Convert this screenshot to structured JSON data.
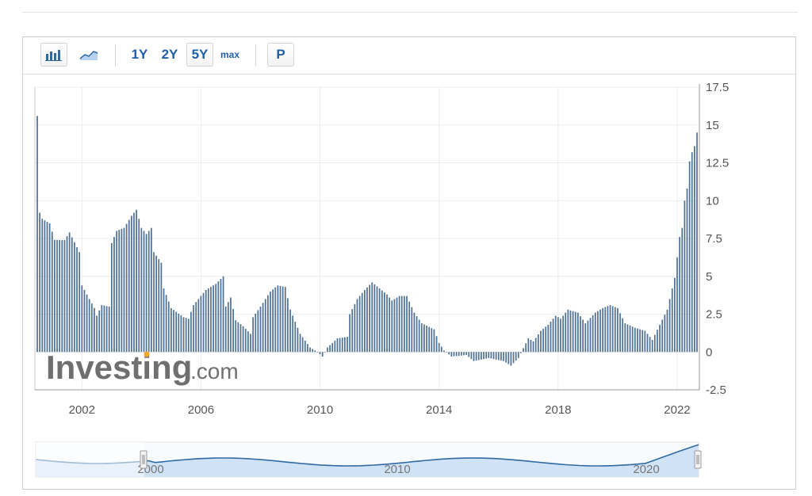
{
  "toolbar": {
    "bar_chart_icon": "bar-chart-icon",
    "area_chart_icon": "area-chart-icon",
    "periods": [
      "1Y",
      "2Y",
      "5Y",
      "max"
    ],
    "selected_period": "5Y",
    "print_label": "P"
  },
  "watermark": {
    "main": "Investing",
    "suffix": ".com"
  },
  "colors": {
    "bar": "#4f7193",
    "accent": "#1f5fa8",
    "logo_dot": "#f5a623",
    "navigator_fill": "#cfe2f6",
    "navigator_line": "#2f6aa3"
  },
  "navigator": {
    "tick_labels": [
      "2000",
      "2010",
      "2020"
    ]
  },
  "chart_data": {
    "type": "bar",
    "x_start": "2000-07",
    "x_end": "2022-09",
    "frequency": "monthly",
    "xlim": [
      "2000-07",
      "2022-09"
    ],
    "ylim": [
      -2.5,
      17.5
    ],
    "y_ticks": [
      "17.5",
      "15",
      "12.5",
      "10",
      "7.5",
      "5",
      "2.5",
      "0",
      "-2.5"
    ],
    "x_ticks": [
      "2002",
      "2006",
      "2010",
      "2014",
      "2018",
      "2022"
    ],
    "y_axis_position": "right",
    "grid": true,
    "anchors": [
      [
        "2000-07",
        15.6
      ],
      [
        "2000-08",
        9.2
      ],
      [
        "2000-09",
        8.8
      ],
      [
        "2000-12",
        8.5
      ],
      [
        "2001-02",
        7.4
      ],
      [
        "2001-06",
        7.4
      ],
      [
        "2001-08",
        7.9
      ],
      [
        "2001-12",
        6.6
      ],
      [
        "2002-01",
        4.4
      ],
      [
        "2002-06",
        2.9
      ],
      [
        "2002-07",
        2.4
      ],
      [
        "2002-09",
        3.1
      ],
      [
        "2002-12",
        3.0
      ],
      [
        "2003-01",
        7.2
      ],
      [
        "2003-03",
        8.0
      ],
      [
        "2003-06",
        8.2
      ],
      [
        "2003-09",
        9.0
      ],
      [
        "2003-11",
        9.4
      ],
      [
        "2004-01",
        8.2
      ],
      [
        "2004-03",
        7.8
      ],
      [
        "2004-05",
        8.2
      ],
      [
        "2004-06",
        6.6
      ],
      [
        "2004-09",
        5.9
      ],
      [
        "2004-10",
        4.2
      ],
      [
        "2005-01",
        2.9
      ],
      [
        "2005-06",
        2.3
      ],
      [
        "2005-08",
        2.2
      ],
      [
        "2005-10",
        3.1
      ],
      [
        "2006-03",
        4.1
      ],
      [
        "2006-07",
        4.5
      ],
      [
        "2006-10",
        5.0
      ],
      [
        "2006-11",
        3.0
      ],
      [
        "2007-01",
        3.6
      ],
      [
        "2007-03",
        2.1
      ],
      [
        "2007-06",
        1.7
      ],
      [
        "2007-09",
        1.2
      ],
      [
        "2007-10",
        2.3
      ],
      [
        "2008-01",
        3.0
      ],
      [
        "2008-05",
        4.0
      ],
      [
        "2008-08",
        4.4
      ],
      [
        "2008-11",
        4.3
      ],
      [
        "2009-01",
        2.8
      ],
      [
        "2009-05",
        1.2
      ],
      [
        "2009-09",
        0.3
      ],
      [
        "2009-12",
        0.0
      ],
      [
        "2010-02",
        -0.3
      ],
      [
        "2010-04",
        0.3
      ],
      [
        "2010-08",
        0.9
      ],
      [
        "2010-12",
        1.0
      ],
      [
        "2011-01",
        2.5
      ],
      [
        "2011-04",
        3.5
      ],
      [
        "2011-07",
        4.1
      ],
      [
        "2011-10",
        4.6
      ],
      [
        "2012-01",
        4.2
      ],
      [
        "2012-04",
        3.8
      ],
      [
        "2012-06",
        3.4
      ],
      [
        "2012-09",
        3.7
      ],
      [
        "2012-12",
        3.7
      ],
      [
        "2013-03",
        2.6
      ],
      [
        "2013-06",
        1.9
      ],
      [
        "2013-11",
        1.5
      ],
      [
        "2014-01",
        0.6
      ],
      [
        "2014-03",
        0.1
      ],
      [
        "2014-06",
        -0.3
      ],
      [
        "2014-12",
        -0.2
      ],
      [
        "2015-03",
        -0.6
      ],
      [
        "2015-09",
        -0.4
      ],
      [
        "2016-03",
        -0.6
      ],
      [
        "2016-06",
        -0.9
      ],
      [
        "2016-09",
        -0.4
      ],
      [
        "2017-01",
        0.9
      ],
      [
        "2017-03",
        0.7
      ],
      [
        "2017-06",
        1.4
      ],
      [
        "2017-09",
        1.8
      ],
      [
        "2017-12",
        2.4
      ],
      [
        "2018-02",
        2.2
      ],
      [
        "2018-05",
        2.8
      ],
      [
        "2018-09",
        2.6
      ],
      [
        "2018-12",
        1.9
      ],
      [
        "2019-04",
        2.6
      ],
      [
        "2019-07",
        2.9
      ],
      [
        "2019-10",
        3.1
      ],
      [
        "2020-01",
        2.9
      ],
      [
        "2020-04",
        1.9
      ],
      [
        "2020-08",
        1.6
      ],
      [
        "2020-12",
        1.4
      ],
      [
        "2021-03",
        0.8
      ],
      [
        "2021-06",
        1.8
      ],
      [
        "2021-09",
        2.8
      ],
      [
        "2021-12",
        4.9
      ],
      [
        "2022-02",
        7.6
      ],
      [
        "2022-03",
        8.2
      ],
      [
        "2022-04",
        10.0
      ],
      [
        "2022-05",
        10.8
      ],
      [
        "2022-06",
        12.6
      ],
      [
        "2022-07",
        13.2
      ],
      [
        "2022-08",
        13.6
      ],
      [
        "2022-09",
        14.5
      ]
    ]
  }
}
